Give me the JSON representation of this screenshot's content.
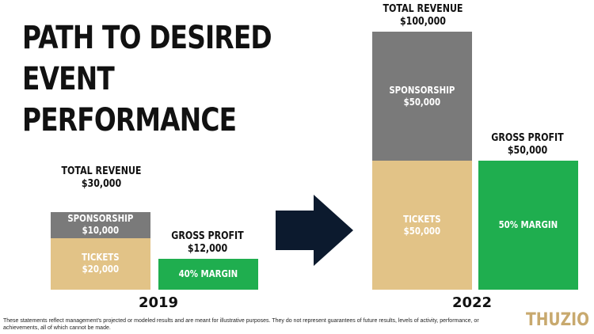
{
  "title_line1": "PATH TO DESIRED",
  "title_line2": "EVENT PERFORMANCE",
  "colors": {
    "tickets": "#e2c387",
    "sponsorship": "#7a7a7a",
    "profit": "#1fae4f",
    "arrow": "#0c1a2e",
    "logo": "#c8a96e"
  },
  "chart_data": [
    {
      "type": "bar",
      "category": "2019",
      "revenue_label": "TOTAL REVENUE",
      "revenue_value": "$30,000",
      "stack": [
        {
          "name": "TICKETS",
          "value": 20000,
          "value_label": "$20,000"
        },
        {
          "name": "SPONSORSHIP",
          "value": 10000,
          "value_label": "$10,000"
        }
      ],
      "profit_label": "GROSS PROFIT",
      "profit_value_label": "$12,000",
      "profit_value": 12000,
      "margin_label": "40% MARGIN"
    },
    {
      "type": "bar",
      "category": "2022",
      "revenue_label": "TOTAL REVENUE",
      "revenue_value": "$100,000",
      "stack": [
        {
          "name": "TICKETS",
          "value": 50000,
          "value_label": "$50,000"
        },
        {
          "name": "SPONSORSHIP",
          "value": 50000,
          "value_label": "$50,000"
        }
      ],
      "profit_label": "GROSS PROFIT",
      "profit_value_label": "$50,000",
      "profit_value": 50000,
      "margin_label": "50% MARGIN"
    }
  ],
  "disclaimer": "These statements reflect management's projected or modeled results and are meant for illustrative purposes. They do not represent guarantees of future results, levels of activity, performance, or achievements, all of which cannot be made.",
  "logo": "THUZIO"
}
